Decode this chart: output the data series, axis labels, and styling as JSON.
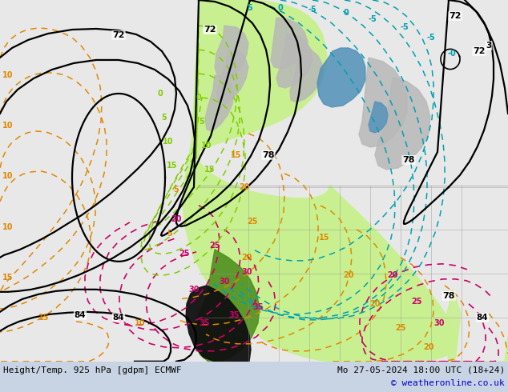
{
  "title_left": "Height/Temp. 925 hPa [gdpm] ECMWF",
  "title_right": "Mo 27-05-2024 18:00 UTC (18+24)",
  "copyright": "© weatheronline.co.uk",
  "bg_color": "#f0f0f0",
  "ocean_color": "#e8e8e8",
  "land_color": "#f5f5f5",
  "green1": "#c8f090",
  "green2": "#b0e060",
  "gray1": "#c0c0c0",
  "blue1": "#4090c0",
  "black_warm": "#101010",
  "bottom_bg": "#c8d4e8",
  "figsize": [
    6.34,
    4.9
  ],
  "dpi": 100,
  "font_size_bottom": 8.0,
  "font_size_copyright": 8.0
}
